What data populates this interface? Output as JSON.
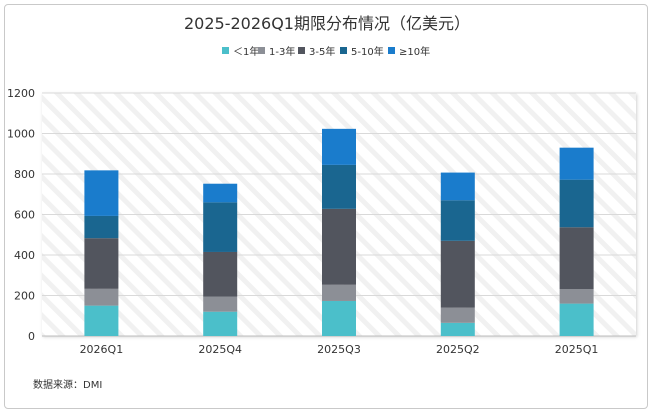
{
  "chart_data": {
    "type": "bar",
    "stacked": true,
    "title": "2025-2026Q1期限分布情况（亿美元）",
    "source": "数据来源：DMI",
    "categories": [
      "2026Q1",
      "2025Q4",
      "2025Q3",
      "2025Q2",
      "2025Q1"
    ],
    "ylim": [
      0,
      1200
    ],
    "yticks": [
      0,
      200,
      400,
      600,
      800,
      1000,
      1200
    ],
    "grid": true,
    "legend_position": "top",
    "series": [
      {
        "name": "＜1年",
        "color": "#4bbfca",
        "values": [
          150,
          120,
          173,
          65,
          160
        ]
      },
      {
        "name": "1-3年",
        "color": "#8c8f96",
        "values": [
          83,
          75,
          80,
          75,
          72
        ]
      },
      {
        "name": "3-5年",
        "color": "#52555e",
        "values": [
          250,
          220,
          375,
          330,
          305
        ]
      },
      {
        "name": "5-10年",
        "color": "#1a6690",
        "values": [
          110,
          245,
          217,
          200,
          235
        ]
      },
      {
        "name": "≥10年",
        "color": "#1a7ccc",
        "values": [
          225,
          92,
          178,
          137,
          158
        ]
      }
    ]
  }
}
